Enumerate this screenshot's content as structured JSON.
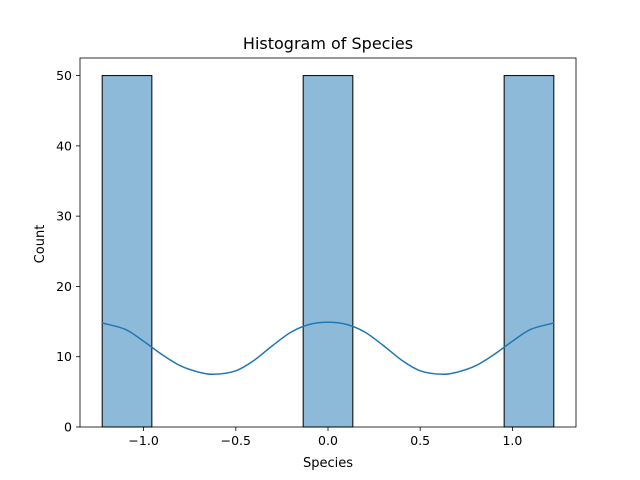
{
  "chart_data": {
    "type": "bar",
    "title": "Histogram of Species",
    "xlabel": "Species",
    "ylabel": "Count",
    "xlim": [
      -1.345,
      1.345
    ],
    "ylim": [
      0,
      52.5
    ],
    "bins": [
      {
        "x0": -1.2247,
        "x1": -0.9553,
        "count": 50
      },
      {
        "x0": -0.1347,
        "x1": 0.1347,
        "count": 50
      },
      {
        "x0": 0.9553,
        "x1": 1.2247,
        "count": 50
      }
    ],
    "kde": {
      "name": "",
      "x": [
        -1.2247,
        -1.1,
        -1.0,
        -0.9,
        -0.8,
        -0.7,
        -0.62,
        -0.5,
        -0.4,
        -0.3,
        -0.2,
        -0.1,
        0.0,
        0.1,
        0.2,
        0.3,
        0.4,
        0.5,
        0.62,
        0.7,
        0.8,
        0.9,
        1.0,
        1.1,
        1.2247
      ],
      "y": [
        14.8,
        13.9,
        12.2,
        10.3,
        8.7,
        7.8,
        7.5,
        8.0,
        9.5,
        11.6,
        13.5,
        14.6,
        14.9,
        14.6,
        13.5,
        11.6,
        9.5,
        8.0,
        7.5,
        7.8,
        8.7,
        10.3,
        12.2,
        13.9,
        14.8
      ]
    },
    "xticks": [
      {
        "value": -1.0,
        "label": "−1.0"
      },
      {
        "value": -0.5,
        "label": "−0.5"
      },
      {
        "value": 0.0,
        "label": "0.0"
      },
      {
        "value": 0.5,
        "label": "0.5"
      },
      {
        "value": 1.0,
        "label": "1.0"
      }
    ],
    "yticks": [
      {
        "value": 0,
        "label": "0"
      },
      {
        "value": 10,
        "label": "10"
      },
      {
        "value": 20,
        "label": "20"
      },
      {
        "value": 30,
        "label": "30"
      },
      {
        "value": 40,
        "label": "40"
      },
      {
        "value": 50,
        "label": "50"
      }
    ],
    "grid": false,
    "legend": "none",
    "colors": {
      "bar_fill": "#8ebad9",
      "bar_edge": "#000000",
      "kde_line": "#1f77b4",
      "axes": "#000000"
    }
  }
}
